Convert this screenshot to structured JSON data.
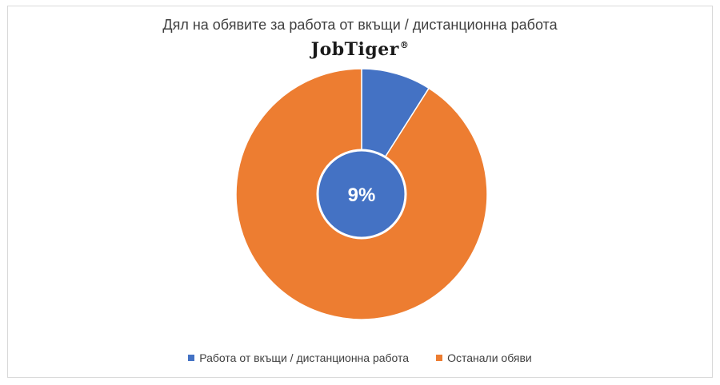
{
  "chart_data": {
    "type": "pie",
    "title": "Дял на обявите за работа от вкъщи / дистанционна работа",
    "logo_text": "JobTiger",
    "logo_mark": "®",
    "slices": [
      {
        "label": "Работа от вкъщи / дистанционна работа",
        "value": 9,
        "color": "#4472C4"
      },
      {
        "label": "Останали обяви",
        "value": 91,
        "color": "#ED7D31"
      }
    ],
    "data_labels": [
      "9%"
    ],
    "legend_position": "bottom"
  },
  "legend": {
    "items": [
      {
        "label": "Работа от вкъщи / дистанционна работа",
        "color": "#4472C4"
      },
      {
        "label": "Останали обяви",
        "color": "#ED7D31"
      }
    ]
  },
  "center_label": {
    "text": "9%",
    "color": "#4472C4"
  }
}
